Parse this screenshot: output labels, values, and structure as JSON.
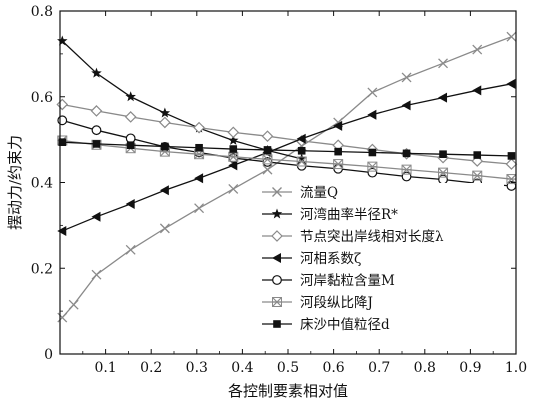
{
  "chart_data": {
    "type": "line",
    "xlabel": "各控制要素相对值",
    "ylabel": "摆动力/约束力",
    "xlim": [
      0,
      1.0
    ],
    "ylim": [
      0,
      0.8
    ],
    "x_ticks": [
      "0.1",
      "0.2",
      "0.3",
      "0.4",
      "0.5",
      "0.6",
      "0.7",
      "0.8",
      "0.9",
      "1.0"
    ],
    "y_ticks": [
      "0",
      "0.2",
      "0.4",
      "0.6",
      "0.8"
    ],
    "grid": false,
    "legend_position": "lower-right",
    "series": [
      {
        "name": "流量Q",
        "marker": "x",
        "color": "#8a8a8a",
        "x": [
          0.005,
          0.03,
          0.08,
          0.155,
          0.23,
          0.305,
          0.38,
          0.455,
          0.53,
          0.61,
          0.685,
          0.76,
          0.84,
          0.915,
          0.99
        ],
        "y": [
          0.085,
          0.115,
          0.185,
          0.243,
          0.293,
          0.34,
          0.385,
          0.43,
          0.485,
          0.54,
          0.61,
          0.645,
          0.678,
          0.71,
          0.74
        ]
      },
      {
        "name": "河湾曲率半径R*",
        "marker": "star",
        "color": "#111111",
        "x": [
          0.005,
          0.08,
          0.155,
          0.23,
          0.305,
          0.38,
          0.455,
          0.53
        ],
        "y": [
          0.73,
          0.655,
          0.6,
          0.562,
          0.527,
          0.498,
          0.475,
          0.455
        ]
      },
      {
        "name": "节点突出岸线相对长度λ",
        "marker": "diamond",
        "color": "#8a8a8a",
        "x": [
          0.005,
          0.08,
          0.155,
          0.23,
          0.305,
          0.38,
          0.455,
          0.53,
          0.61,
          0.685,
          0.76,
          0.84,
          0.915,
          0.99
        ],
        "y": [
          0.582,
          0.567,
          0.553,
          0.54,
          0.528,
          0.517,
          0.508,
          0.497,
          0.487,
          0.477,
          0.467,
          0.458,
          0.45,
          0.443
        ]
      },
      {
        "name": "河相系数ζ",
        "marker": "triangle-left",
        "color": "#111111",
        "x": [
          0.005,
          0.08,
          0.155,
          0.23,
          0.305,
          0.38,
          0.455,
          0.53,
          0.61,
          0.685,
          0.76,
          0.84,
          0.915,
          0.99
        ],
        "y": [
          0.287,
          0.32,
          0.35,
          0.382,
          0.41,
          0.44,
          0.47,
          0.502,
          0.532,
          0.558,
          0.58,
          0.598,
          0.615,
          0.63
        ]
      },
      {
        "name": "河岸黏粒含量M",
        "marker": "circle",
        "color": "#111111",
        "x": [
          0.005,
          0.08,
          0.155,
          0.23,
          0.305,
          0.38,
          0.455,
          0.53,
          0.61,
          0.685,
          0.76,
          0.84,
          0.915,
          0.99
        ],
        "y": [
          0.545,
          0.522,
          0.503,
          0.483,
          0.47,
          0.457,
          0.448,
          0.439,
          0.432,
          0.423,
          0.414,
          0.407,
          0.398,
          0.392
        ]
      },
      {
        "name": "河段纵比降J",
        "marker": "asterisk",
        "color": "#8a8a8a",
        "x": [
          0.005,
          0.08,
          0.155,
          0.23,
          0.305,
          0.38,
          0.455,
          0.53,
          0.61,
          0.685,
          0.76,
          0.84,
          0.915,
          0.99
        ],
        "y": [
          0.498,
          0.488,
          0.48,
          0.472,
          0.466,
          0.46,
          0.454,
          0.449,
          0.443,
          0.437,
          0.43,
          0.423,
          0.416,
          0.408
        ]
      },
      {
        "name": "床沙中值粒径d",
        "marker": "square",
        "color": "#111111",
        "x": [
          0.005,
          0.08,
          0.155,
          0.23,
          0.305,
          0.38,
          0.455,
          0.53,
          0.61,
          0.685,
          0.76,
          0.84,
          0.915,
          0.99
        ],
        "y": [
          0.494,
          0.49,
          0.487,
          0.484,
          0.481,
          0.478,
          0.476,
          0.474,
          0.472,
          0.47,
          0.468,
          0.466,
          0.464,
          0.462
        ]
      }
    ]
  }
}
